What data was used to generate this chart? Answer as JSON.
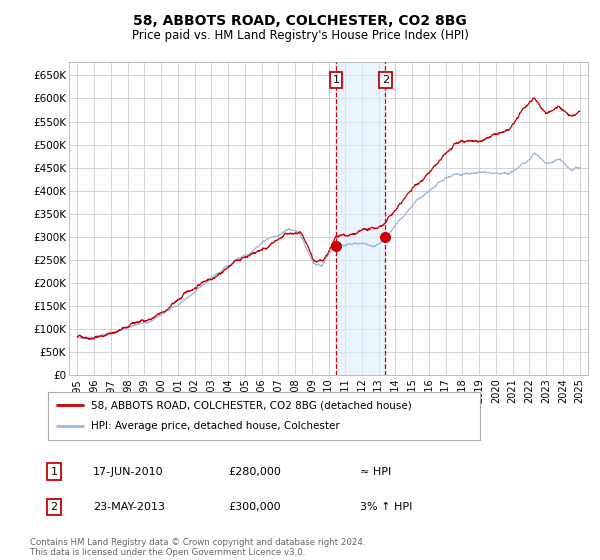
{
  "title": "58, ABBOTS ROAD, COLCHESTER, CO2 8BG",
  "subtitle": "Price paid vs. HM Land Registry's House Price Index (HPI)",
  "background_color": "#ffffff",
  "plot_bg_color": "#ffffff",
  "grid_color": "#cccccc",
  "line1_color": "#cc0000",
  "line2_color": "#99bbdd",
  "shade_color": "#ddeeff",
  "dashed_color": "#cc0000",
  "marker_color": "#cc0000",
  "transaction1": {
    "date_num": 2010.46,
    "price": 280000
  },
  "transaction2": {
    "date_num": 2013.39,
    "price": 300000
  },
  "shade_start": 2010.46,
  "shade_end": 2013.39,
  "ylim": [
    0,
    680000
  ],
  "xlim": [
    1994.5,
    2025.5
  ],
  "yticks": [
    0,
    50000,
    100000,
    150000,
    200000,
    250000,
    300000,
    350000,
    400000,
    450000,
    500000,
    550000,
    600000,
    650000
  ],
  "ytick_labels": [
    "£0",
    "£50K",
    "£100K",
    "£150K",
    "£200K",
    "£250K",
    "£300K",
    "£350K",
    "£400K",
    "£450K",
    "£500K",
    "£550K",
    "£600K",
    "£650K"
  ],
  "xticks": [
    1995,
    1996,
    1997,
    1998,
    1999,
    2000,
    2001,
    2002,
    2003,
    2004,
    2005,
    2006,
    2007,
    2008,
    2009,
    2010,
    2011,
    2012,
    2013,
    2014,
    2015,
    2016,
    2017,
    2018,
    2019,
    2020,
    2021,
    2022,
    2023,
    2024,
    2025
  ],
  "legend_label1": "58, ABBOTS ROAD, COLCHESTER, CO2 8BG (detached house)",
  "legend_label2": "HPI: Average price, detached house, Colchester",
  "annot1_label": "1",
  "annot1_date": "17-JUN-2010",
  "annot1_price": "£280,000",
  "annot1_hpi": "≈ HPI",
  "annot2_label": "2",
  "annot2_date": "23-MAY-2013",
  "annot2_price": "£300,000",
  "annot2_hpi": "3% ↑ HPI",
  "footer": "Contains HM Land Registry data © Crown copyright and database right 2024.\nThis data is licensed under the Open Government Licence v3.0."
}
